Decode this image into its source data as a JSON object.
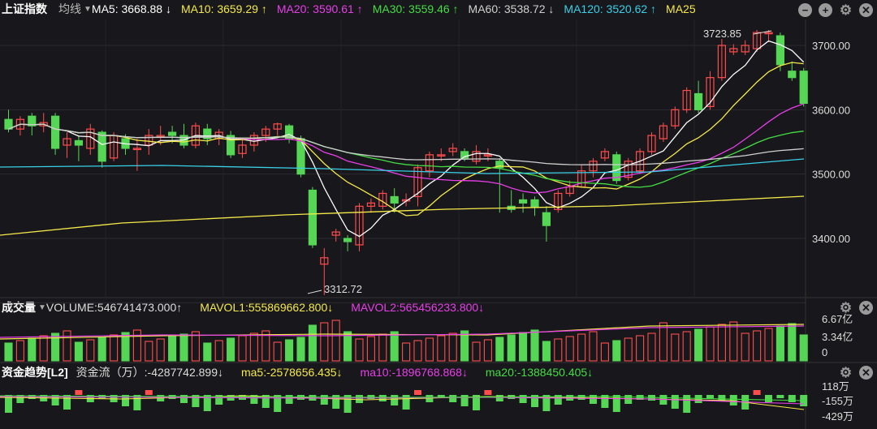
{
  "price_panel": {
    "title": "上证指数",
    "avg_line_label": "均线",
    "indicators": [
      {
        "label": "MA5: 3668.88 ↓",
        "color": "#ffffff"
      },
      {
        "label": "MA10: 3659.29 ↑",
        "color": "#f5e94a"
      },
      {
        "label": "MA20: 3590.61 ↑",
        "color": "#e83ee8"
      },
      {
        "label": "MA30: 3559.46 ↑",
        "color": "#44dd44"
      },
      {
        "label": "MA60: 3538.72 ↓",
        "color": "#d0d0d0"
      },
      {
        "label": "MA120: 3520.62 ↑",
        "color": "#39d0e8"
      },
      {
        "label": "MA25",
        "color": "#f5e94a"
      }
    ],
    "y_ticks": [
      "3700.00",
      "3600.00",
      "3500.00",
      "3400.00"
    ],
    "high_annotation": "3723.85",
    "low_annotation": "3312.72"
  },
  "volume_panel": {
    "title": "成交量",
    "volume_label": "VOLUME:546741473.000↑",
    "mavol1_label": "MAVOL1:555869662.800↓",
    "mavol2_label": "MAVOL2:565456233.800↓",
    "y_ticks": [
      "6.67亿",
      "3.34亿",
      "0"
    ]
  },
  "flow_panel": {
    "title": "资金趋势[L2]",
    "flow_label": "资金流（万）:-4287742.899↓",
    "ma5_label": "ma5:-2578656.435↓",
    "ma10_label": "ma10:-1896768.868↓",
    "ma20_label": "ma20:-1388450.405↓",
    "y_ticks": [
      "118万",
      "-155万",
      "-429万"
    ]
  },
  "toolbar": {
    "minus_icon": "−",
    "plus_icon": "+",
    "gear_icon": "⚙",
    "close_icon": "✕"
  },
  "colors": {
    "up": "#ff4d4d",
    "down": "#55d655",
    "ma5": "#ffffff",
    "ma10": "#f5e94a",
    "ma20": "#e83ee8",
    "ma30": "#44dd44",
    "ma60": "#d0d0d0",
    "ma120": "#39d0e8",
    "ma250": "#f5e94a"
  }
}
